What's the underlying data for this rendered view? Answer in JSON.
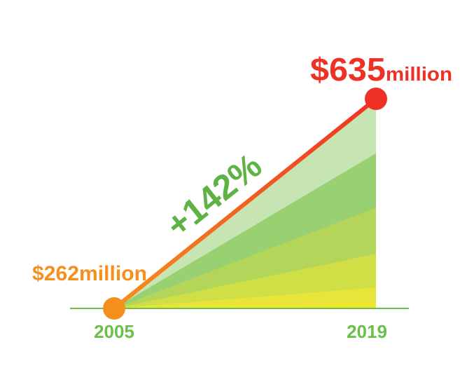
{
  "chart_data": {
    "type": "line",
    "x": [
      "2005",
      "2019"
    ],
    "values": [
      262,
      635
    ],
    "value_labels": [
      {
        "amount": "$262",
        "unit": "million"
      },
      {
        "amount": "$635",
        "unit": "million"
      }
    ],
    "change_label": "+142%",
    "ylim": [
      0,
      635
    ],
    "grid": false,
    "colors": {
      "start_point": "#f5901e",
      "end_point": "#ee3124",
      "axis": "#6cbf4b",
      "x_labels": "#6cbf4b",
      "change_label": "#5fb246",
      "start_label": "#f5901e",
      "end_label": "#ee3124",
      "fill_top": "#a9d88e",
      "fill_bottom": "#f2e52e"
    }
  }
}
